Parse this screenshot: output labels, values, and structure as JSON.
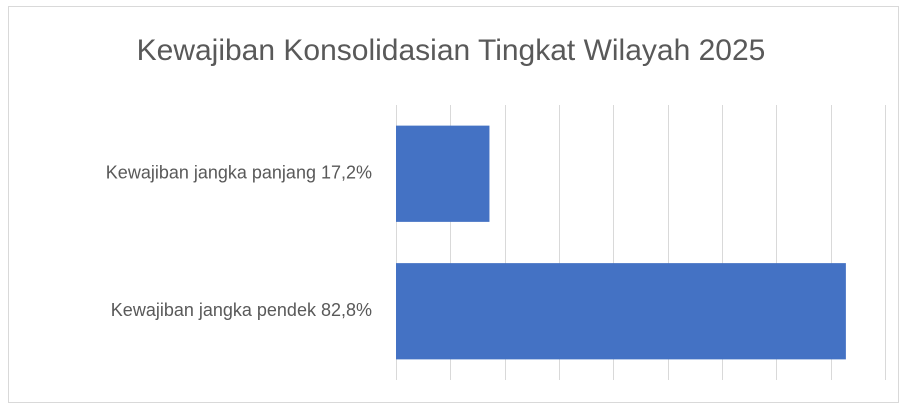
{
  "chart_data": {
    "type": "hbar",
    "title": "Kewajiban Konsolidasian Tingkat Wilayah 2025",
    "categories": [
      "Kewajiban jangka panjang 17,2%",
      "Kewajiban jangka pendek 82,8%"
    ],
    "values": [
      17.2,
      82.8
    ],
    "color": "#4472c4",
    "xlim": [
      0,
      90
    ],
    "xticks": [
      0,
      10,
      20,
      30,
      40,
      50,
      60,
      70,
      80,
      90
    ],
    "grid": true
  }
}
